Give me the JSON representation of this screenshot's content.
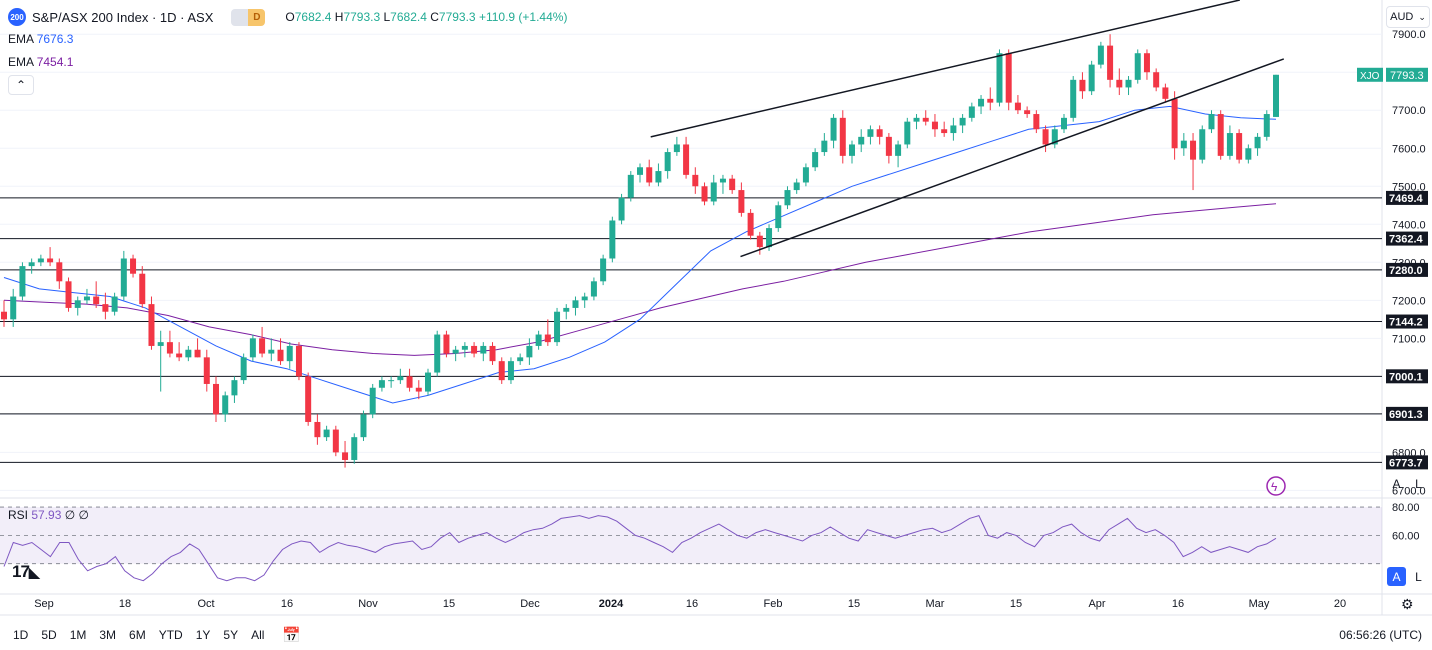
{
  "header": {
    "logo_text": "200",
    "symbol": "S&P/ASX 200 Index · 1D · ASX",
    "pill_a": "",
    "pill_b": "D",
    "o_key": "O",
    "o_val": "7682.4",
    "h_key": "H",
    "h_val": "7793.3",
    "l_key": "L",
    "l_val": "7682.4",
    "c_key": "C",
    "c_val": "7793.3",
    "change": "+110.9 (+1.44%)",
    "up_color": "#22ab94"
  },
  "indicators": {
    "ema1_name": "EMA",
    "ema1_value": "7676.3",
    "ema1_color": "#2962ff",
    "ema2_name": "EMA",
    "ema2_value": "7454.1",
    "ema2_color": "#7b1fa2",
    "collapse_icon": "chevron-up-icon"
  },
  "rsi_pane": {
    "name": "RSI",
    "value": "57.93",
    "extra1": "∅",
    "extra2": "∅",
    "color": "#7e57c2"
  },
  "currency": "AUD",
  "scale_buttons": {
    "auto": "A",
    "log": "L",
    "auto2": "A",
    "log2": "L"
  },
  "settings_icon": "gear-icon",
  "lightning_icon": "flash-icon",
  "tv_logo": "17",
  "bottom_bar": {
    "ranges": [
      "1D",
      "5D",
      "1M",
      "3M",
      "6M",
      "YTD",
      "1Y",
      "5Y",
      "All"
    ],
    "calendar_icon": "calendar-range-icon",
    "clock": "06:56:26 (UTC)"
  },
  "chart_data": {
    "type": "candlestick",
    "symbol_tag": "XJO",
    "y_ticks": [
      6700,
      6800,
      6900,
      7000,
      7100,
      7200,
      7300,
      7400,
      7500,
      7600,
      7700,
      7800,
      7900
    ],
    "ylim": [
      6680,
      7990
    ],
    "x_ticks": [
      "Sep",
      "18",
      "Oct",
      "16",
      "Nov",
      "15",
      "Dec",
      "2024",
      "16",
      "Feb",
      "15",
      "Mar",
      "15",
      "Apr",
      "16",
      "May",
      "20"
    ],
    "last_price": 7793.3,
    "horizontal_levels": [
      7469.4,
      7362.4,
      7280.0,
      7144.2,
      7000.1,
      6901.3,
      6773.7
    ],
    "candles": [
      [
        7170,
        7200,
        7130,
        7150
      ],
      [
        7150,
        7230,
        7130,
        7210
      ],
      [
        7210,
        7300,
        7200,
        7290
      ],
      [
        7290,
        7310,
        7270,
        7300
      ],
      [
        7300,
        7320,
        7290,
        7310
      ],
      [
        7310,
        7340,
        7290,
        7300
      ],
      [
        7300,
        7310,
        7230,
        7250
      ],
      [
        7250,
        7260,
        7170,
        7180
      ],
      [
        7180,
        7210,
        7160,
        7200
      ],
      [
        7200,
        7230,
        7190,
        7210
      ],
      [
        7210,
        7250,
        7180,
        7190
      ],
      [
        7190,
        7220,
        7150,
        7170
      ],
      [
        7170,
        7220,
        7160,
        7210
      ],
      [
        7210,
        7330,
        7200,
        7310
      ],
      [
        7310,
        7320,
        7260,
        7270
      ],
      [
        7270,
        7290,
        7180,
        7190
      ],
      [
        7190,
        7210,
        7070,
        7080
      ],
      [
        7080,
        7120,
        6960,
        7090
      ],
      [
        7090,
        7120,
        7050,
        7060
      ],
      [
        7060,
        7090,
        7040,
        7050
      ],
      [
        7050,
        7080,
        7040,
        7070
      ],
      [
        7070,
        7100,
        7050,
        7050
      ],
      [
        7050,
        7070,
        6960,
        6980
      ],
      [
        6980,
        7000,
        6880,
        6900
      ],
      [
        6900,
        6960,
        6880,
        6950
      ],
      [
        6950,
        7000,
        6930,
        6990
      ],
      [
        6990,
        7060,
        6980,
        7050
      ],
      [
        7050,
        7110,
        7040,
        7100
      ],
      [
        7100,
        7130,
        7050,
        7060
      ],
      [
        7060,
        7100,
        7040,
        7070
      ],
      [
        7070,
        7100,
        7030,
        7040
      ],
      [
        7040,
        7090,
        7020,
        7080
      ],
      [
        7080,
        7090,
        6990,
        7000
      ],
      [
        7000,
        7010,
        6870,
        6880
      ],
      [
        6880,
        6900,
        6820,
        6840
      ],
      [
        6840,
        6870,
        6830,
        6860
      ],
      [
        6860,
        6870,
        6790,
        6800
      ],
      [
        6800,
        6830,
        6760,
        6780
      ],
      [
        6780,
        6850,
        6770,
        6840
      ],
      [
        6840,
        6910,
        6830,
        6900
      ],
      [
        6900,
        6980,
        6890,
        6970
      ],
      [
        6970,
        7000,
        6960,
        6990
      ],
      [
        6990,
        7000,
        6970,
        6990
      ],
      [
        6990,
        7020,
        6980,
        7000
      ],
      [
        7000,
        7020,
        6960,
        6970
      ],
      [
        6970,
        6990,
        6940,
        6960
      ],
      [
        6960,
        7020,
        6950,
        7010
      ],
      [
        7010,
        7120,
        7000,
        7110
      ],
      [
        7110,
        7120,
        7050,
        7060
      ],
      [
        7060,
        7080,
        7040,
        7070
      ],
      [
        7070,
        7090,
        7050,
        7080
      ],
      [
        7080,
        7090,
        7050,
        7060
      ],
      [
        7060,
        7090,
        7040,
        7080
      ],
      [
        7080,
        7090,
        7030,
        7040
      ],
      [
        7040,
        7050,
        6980,
        6990
      ],
      [
        6990,
        7050,
        6980,
        7040
      ],
      [
        7040,
        7060,
        7030,
        7050
      ],
      [
        7050,
        7100,
        7030,
        7080
      ],
      [
        7080,
        7120,
        7070,
        7110
      ],
      [
        7110,
        7150,
        7080,
        7090
      ],
      [
        7090,
        7180,
        7080,
        7170
      ],
      [
        7170,
        7190,
        7150,
        7180
      ],
      [
        7180,
        7210,
        7160,
        7200
      ],
      [
        7200,
        7220,
        7180,
        7210
      ],
      [
        7210,
        7260,
        7200,
        7250
      ],
      [
        7250,
        7320,
        7240,
        7310
      ],
      [
        7310,
        7420,
        7300,
        7410
      ],
      [
        7410,
        7480,
        7400,
        7470
      ],
      [
        7470,
        7540,
        7460,
        7530
      ],
      [
        7530,
        7560,
        7510,
        7550
      ],
      [
        7550,
        7570,
        7500,
        7510
      ],
      [
        7510,
        7560,
        7500,
        7540
      ],
      [
        7540,
        7600,
        7520,
        7590
      ],
      [
        7590,
        7630,
        7580,
        7610
      ],
      [
        7610,
        7630,
        7520,
        7530
      ],
      [
        7530,
        7550,
        7480,
        7500
      ],
      [
        7500,
        7510,
        7450,
        7460
      ],
      [
        7460,
        7530,
        7450,
        7510
      ],
      [
        7510,
        7530,
        7480,
        7520
      ],
      [
        7520,
        7530,
        7480,
        7490
      ],
      [
        7490,
        7510,
        7420,
        7430
      ],
      [
        7430,
        7440,
        7360,
        7370
      ],
      [
        7370,
        7380,
        7320,
        7340
      ],
      [
        7340,
        7400,
        7330,
        7390
      ],
      [
        7390,
        7460,
        7380,
        7450
      ],
      [
        7450,
        7500,
        7440,
        7490
      ],
      [
        7490,
        7520,
        7480,
        7510
      ],
      [
        7510,
        7560,
        7500,
        7550
      ],
      [
        7550,
        7600,
        7540,
        7590
      ],
      [
        7590,
        7640,
        7580,
        7620
      ],
      [
        7620,
        7690,
        7600,
        7680
      ],
      [
        7680,
        7700,
        7560,
        7580
      ],
      [
        7580,
        7620,
        7560,
        7610
      ],
      [
        7610,
        7650,
        7590,
        7630
      ],
      [
        7630,
        7660,
        7610,
        7650
      ],
      [
        7650,
        7660,
        7610,
        7630
      ],
      [
        7630,
        7640,
        7560,
        7580
      ],
      [
        7580,
        7620,
        7550,
        7610
      ],
      [
        7610,
        7680,
        7600,
        7670
      ],
      [
        7670,
        7690,
        7650,
        7680
      ],
      [
        7680,
        7700,
        7660,
        7670
      ],
      [
        7670,
        7690,
        7630,
        7650
      ],
      [
        7650,
        7670,
        7630,
        7640
      ],
      [
        7640,
        7680,
        7620,
        7660
      ],
      [
        7660,
        7690,
        7640,
        7680
      ],
      [
        7680,
        7720,
        7670,
        7710
      ],
      [
        7710,
        7740,
        7690,
        7730
      ],
      [
        7730,
        7760,
        7700,
        7720
      ],
      [
        7720,
        7860,
        7710,
        7850
      ],
      [
        7850,
        7860,
        7700,
        7720
      ],
      [
        7720,
        7740,
        7690,
        7700
      ],
      [
        7700,
        7710,
        7680,
        7690
      ],
      [
        7690,
        7700,
        7640,
        7650
      ],
      [
        7650,
        7660,
        7590,
        7610
      ],
      [
        7610,
        7660,
        7600,
        7650
      ],
      [
        7650,
        7690,
        7640,
        7680
      ],
      [
        7680,
        7790,
        7670,
        7780
      ],
      [
        7780,
        7800,
        7730,
        7750
      ],
      [
        7750,
        7830,
        7740,
        7820
      ],
      [
        7820,
        7880,
        7810,
        7870
      ],
      [
        7870,
        7900,
        7760,
        7780
      ],
      [
        7780,
        7810,
        7740,
        7760
      ],
      [
        7760,
        7790,
        7740,
        7780
      ],
      [
        7780,
        7860,
        7770,
        7850
      ],
      [
        7850,
        7860,
        7780,
        7800
      ],
      [
        7800,
        7810,
        7750,
        7760
      ],
      [
        7760,
        7770,
        7720,
        7730
      ],
      [
        7730,
        7750,
        7570,
        7600
      ],
      [
        7600,
        7640,
        7580,
        7620
      ],
      [
        7620,
        7640,
        7490,
        7570
      ],
      [
        7570,
        7660,
        7560,
        7650
      ],
      [
        7650,
        7700,
        7640,
        7690
      ],
      [
        7690,
        7700,
        7570,
        7580
      ],
      [
        7580,
        7660,
        7570,
        7640
      ],
      [
        7640,
        7650,
        7560,
        7570
      ],
      [
        7570,
        7610,
        7560,
        7600
      ],
      [
        7600,
        7640,
        7580,
        7630
      ],
      [
        7630,
        7700,
        7620,
        7690
      ],
      [
        7682.4,
        7793.3,
        7682.4,
        7793.3
      ]
    ],
    "ema_fast_samples": [
      7260,
      7230,
      7220,
      7210,
      7180,
      7130,
      7080,
      7040,
      7020,
      6990,
      6960,
      6930,
      6950,
      6980,
      7010,
      7020,
      7050,
      7090,
      7150,
      7240,
      7330,
      7380,
      7420,
      7460,
      7500,
      7530,
      7560,
      7590,
      7620,
      7650,
      7660,
      7670,
      7700,
      7710,
      7690,
      7680,
      7676.3
    ],
    "ema_slow_samples": [
      7200,
      7195,
      7190,
      7180,
      7160,
      7130,
      7110,
      7085,
      7070,
      7060,
      7055,
      7060,
      7070,
      7090,
      7120,
      7150,
      7180,
      7205,
      7230,
      7250,
      7275,
      7300,
      7320,
      7340,
      7360,
      7380,
      7395,
      7410,
      7425,
      7435,
      7445,
      7454.1
    ],
    "rsi": {
      "levels": [
        80,
        60,
        40
      ],
      "ylim": [
        20,
        85
      ],
      "y_ticks": [
        80,
        60
      ],
      "values": [
        38,
        55,
        53,
        55,
        50,
        45,
        55,
        55,
        43,
        35,
        38,
        40,
        45,
        35,
        30,
        28,
        33,
        40,
        45,
        48,
        54,
        50,
        40,
        30,
        28,
        30,
        30,
        28,
        32,
        42,
        50,
        54,
        56,
        55,
        48,
        52,
        55,
        53,
        52,
        50,
        48,
        52,
        54,
        55,
        56,
        50,
        52,
        58,
        62,
        55,
        58,
        60,
        62,
        58,
        55,
        58,
        62,
        64,
        65,
        68,
        72,
        73,
        74,
        72,
        74,
        73,
        70,
        65,
        60,
        58,
        55,
        52,
        48,
        55,
        58,
        62,
        65,
        68,
        64,
        60,
        58,
        62,
        64,
        62,
        60,
        58,
        56,
        60,
        62,
        66,
        62,
        58,
        56,
        64,
        62,
        60,
        58,
        60,
        62,
        64,
        65,
        62,
        64,
        68,
        72,
        74,
        60,
        58,
        62,
        60,
        55,
        52,
        60,
        62,
        66,
        68,
        62,
        58,
        56,
        64,
        68,
        72,
        65,
        62,
        64,
        60,
        55,
        45,
        48,
        52,
        48,
        50,
        52,
        50,
        48,
        52,
        54,
        57.93
      ]
    },
    "trendlines": [
      {
        "name": "upper-channel",
        "from": [
          0.4544,
          7630
        ],
        "to": [
          0.8658,
          7990
        ]
      },
      {
        "name": "lower-channel",
        "from": [
          0.5171,
          7315
        ],
        "to": [
          0.8965,
          7835
        ]
      }
    ]
  }
}
